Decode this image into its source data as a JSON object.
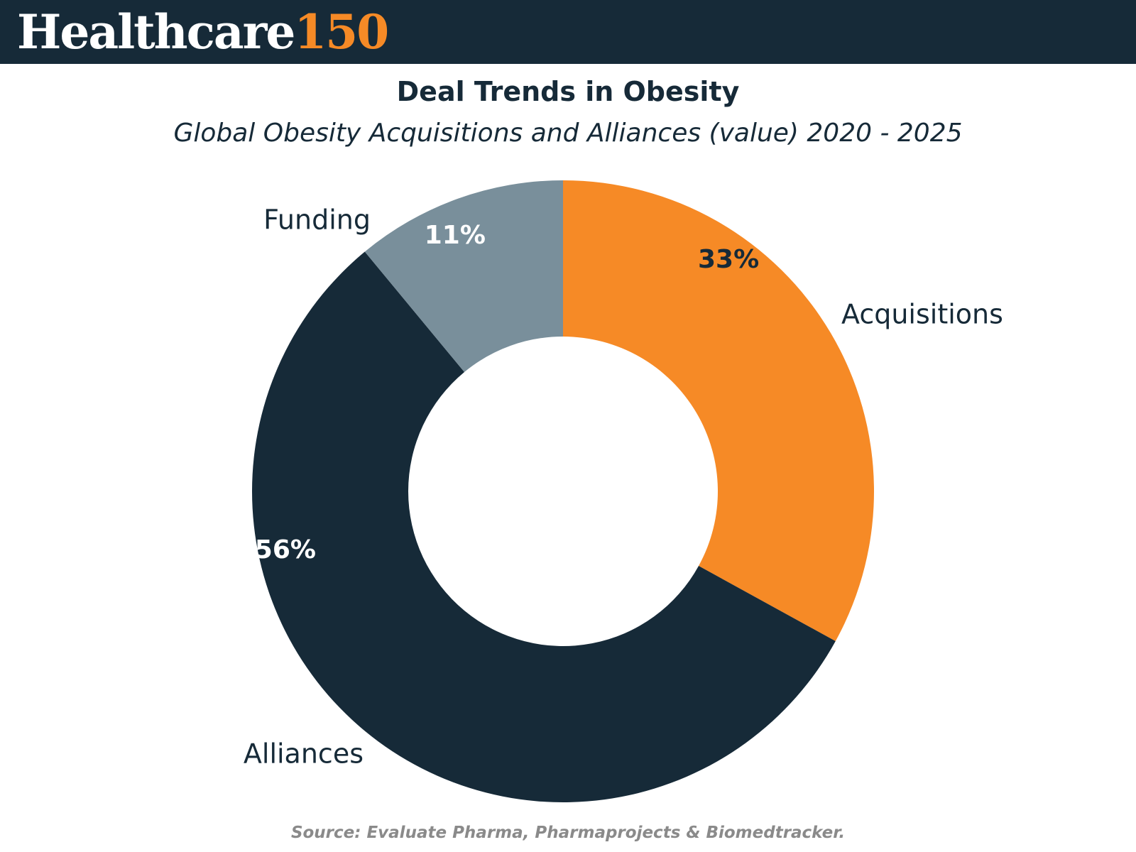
{
  "header": {
    "brand_word": "Healthcare",
    "brand_number": "150"
  },
  "colors": {
    "header_bg": "#162a38",
    "acquisitions": "#f68a26",
    "alliances": "#162a38",
    "funding": "#798f9b",
    "source_text": "#8a8a8a"
  },
  "chart_data": {
    "type": "pie",
    "variant": "donut",
    "title": "Deal Trends in Obesity",
    "subtitle": "Global Obesity Acquisitions and Alliances (value) 2020 - 2025",
    "categories": [
      "Acquisitions",
      "Alliances",
      "Funding"
    ],
    "values": [
      33,
      56,
      11
    ],
    "value_labels": [
      "33%",
      "56%",
      "11%"
    ],
    "unit": "%"
  },
  "footer": {
    "source": "Source: Evaluate Pharma, Pharmaprojects & Biomedtracker."
  }
}
